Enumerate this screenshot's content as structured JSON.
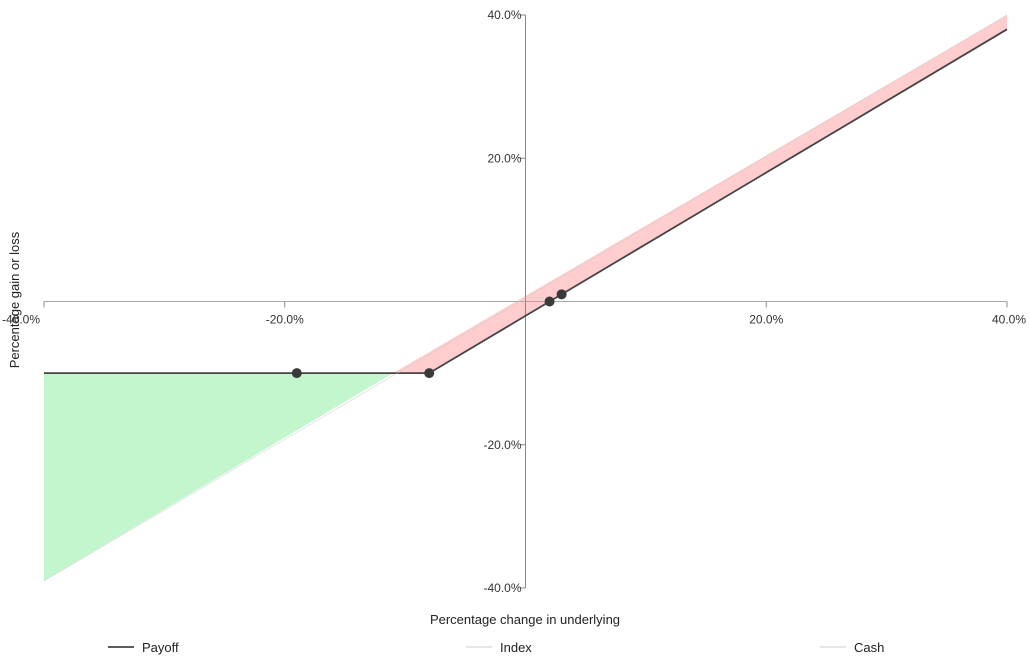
{
  "chart_data": {
    "type": "line",
    "title": "",
    "xlabel": "Percentage change in underlying",
    "ylabel": "Percentage gain or loss",
    "xlim": [
      -40,
      40
    ],
    "ylim": [
      -40,
      40
    ],
    "grid": false,
    "legend_position": "bottom",
    "x_ticks": [
      {
        "value": -40,
        "label": "-40.0%"
      },
      {
        "value": -20,
        "label": "-20.0%"
      },
      {
        "value": 20,
        "label": "20.0%"
      },
      {
        "value": 40,
        "label": "40.0%"
      }
    ],
    "y_ticks": [
      {
        "value": 40,
        "label": "40.0%"
      },
      {
        "value": 20,
        "label": "20.0%"
      },
      {
        "value": -20,
        "label": "-20.0%"
      },
      {
        "value": -40,
        "label": "-40.0%"
      }
    ],
    "series": [
      {
        "name": "Payoff",
        "color": "#444444",
        "points": [
          [
            -40,
            -10
          ],
          [
            -8,
            -10
          ],
          [
            40,
            38
          ]
        ]
      },
      {
        "name": "Index",
        "color": "#cccccc",
        "points": [
          [
            -40,
            -39
          ],
          [
            40,
            40
          ]
        ]
      },
      {
        "name": "Cash",
        "color": "#cccccc",
        "points": [
          [
            -40,
            0
          ],
          [
            40,
            0
          ]
        ]
      }
    ],
    "shaded_regions": [
      {
        "kind": "outperformance",
        "color": "#b9f5c4",
        "points": [
          [
            -40,
            -10
          ],
          [
            -11,
            -10
          ],
          [
            -40,
            -39
          ]
        ]
      },
      {
        "kind": "underperformance",
        "color": "#ffc4c4",
        "points": [
          [
            -11,
            -10
          ],
          [
            -8,
            -10
          ],
          [
            40,
            38
          ],
          [
            40,
            40
          ]
        ]
      }
    ],
    "markers": [
      {
        "x": -19,
        "y": -10
      },
      {
        "x": -8,
        "y": -10
      },
      {
        "x": 2,
        "y": 0
      },
      {
        "x": 3,
        "y": 1
      }
    ]
  }
}
